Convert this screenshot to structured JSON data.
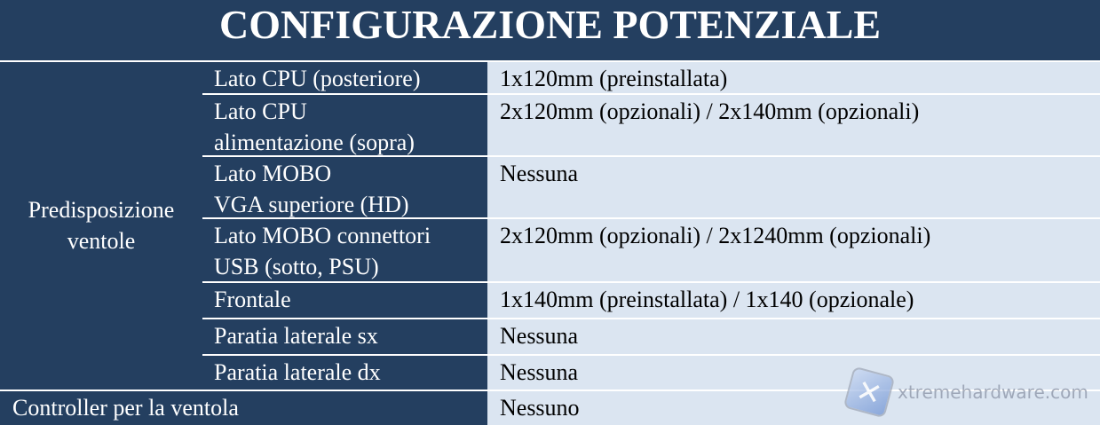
{
  "title": "CONFIGURAZIONE POTENZIALE",
  "group_label": "Predisposizione ventole",
  "rows": [
    {
      "label_lines": [
        "Lato CPU (posteriore)"
      ],
      "value": "1x120mm (preinstallata)"
    },
    {
      "label_lines": [
        "Lato CPU",
        "alimentazione  (sopra)"
      ],
      "value": "2x120mm (opzionali)  / 2x140mm (opzionali)"
    },
    {
      "label_lines": [
        "Lato MOBO",
        "VGA superiore  (HD)"
      ],
      "value": "Nessuna"
    },
    {
      "label_lines": [
        "Lato MOBO connettori",
        "USB (sotto, PSU)"
      ],
      "value": "2x120mm (opzionali)  / 2x1240mm (opzionali)"
    },
    {
      "label_lines": [
        "Frontale"
      ],
      "value": "1x140mm (preinstallata)  / 1x140 (opzionale)"
    },
    {
      "label_lines": [
        "Paratia laterale  sx"
      ],
      "value": "Nessuna"
    },
    {
      "label_lines": [
        "Paratia laterale  dx"
      ],
      "value": "Nessuna"
    }
  ],
  "footer_row": {
    "label": "Controller  per la ventola",
    "value": "Nessuno"
  },
  "watermark": "xtremehardware.com",
  "colors": {
    "header_bg": "#243f60",
    "value_bg": "#dbe5f1",
    "text_light": "#ffffff"
  }
}
